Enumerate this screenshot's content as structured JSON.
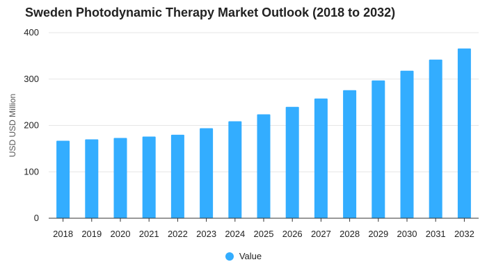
{
  "colors": {
    "bar": "#33adff",
    "grid": "#e6e6e6",
    "axis": "#333333"
  },
  "chart_data": {
    "type": "bar",
    "title": "Sweden Photodynamic Therapy Market Outlook (2018 to 2032)",
    "xlabel": "",
    "ylabel": "USD USD Million",
    "ylim": [
      0,
      400
    ],
    "yticks": [
      0,
      100,
      200,
      300,
      400
    ],
    "grid": true,
    "legend_position": "bottom",
    "categories": [
      "2018",
      "2019",
      "2020",
      "2021",
      "2022",
      "2023",
      "2024",
      "2025",
      "2026",
      "2027",
      "2028",
      "2029",
      "2030",
      "2031",
      "2032"
    ],
    "series": [
      {
        "name": "Value",
        "values": [
          167,
          170,
          173,
          176,
          180,
          194,
          209,
          224,
          240,
          258,
          276,
          297,
          318,
          342,
          366
        ]
      }
    ]
  }
}
